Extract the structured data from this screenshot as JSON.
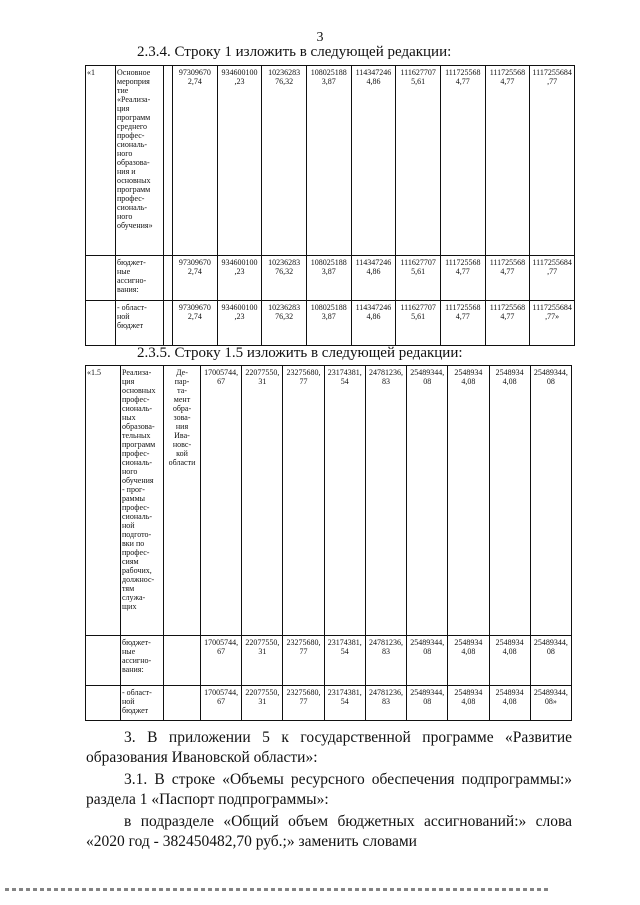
{
  "page_number": "3",
  "section1": {
    "heading": "2.3.4. Строку 1 изложить в следующей редакции:",
    "rows": [
      {
        "num": "«1",
        "name": "Основное\nмероприя\nтие\n«Реализа-\nция\nпрограмм\nсреднего\nпрофес-\nсиональ-\nного\nобразова-\nния и\nосновных\nпрограмм\nпрофес-\nсиональ-\nного\nобучения»",
        "exec": "",
        "values": [
          "97309670\n2,74",
          "934600100\n,23",
          "10236283\n76,32",
          "108025188\n3,87",
          "114347246\n4,86",
          "111627707\n5,61",
          "111725568\n4,77",
          "111725568\n4,77",
          "1117255684\n,77"
        ]
      },
      {
        "num": "",
        "name": "бюджет-\nные\nассигно-\nвания:",
        "exec": "",
        "values": [
          "97309670\n2,74",
          "934600100\n,23",
          "10236283\n76,32",
          "108025188\n3,87",
          "114347246\n4,86",
          "111627707\n5,61",
          "111725568\n4,77",
          "111725568\n4,77",
          "1117255684\n,77"
        ]
      },
      {
        "num": "",
        "name": "- област-\nной\nбюджет",
        "exec": "",
        "values": [
          "97309670\n2,74",
          "934600100\n,23",
          "10236283\n76,32",
          "108025188\n3,87",
          "114347246\n4,86",
          "111627707\n5,61",
          "111725568\n4,77",
          "111725568\n4,77",
          "1117255684\n,77»"
        ]
      }
    ]
  },
  "section2": {
    "heading": "2.3.5. Строку 1.5 изложить в следующей редакции:",
    "rows": [
      {
        "num": "«1.5",
        "name": "Реализа-\nция\nосновных\nпрофес-\nсиональ-\nных\nобразова-\nтельных\nпрограмм\nпрофес-\nсиональ-\nного\nобучения\n- прог-\nраммы\nпрофес-\nсиональ-\nной\nподгото-\nвки по\nпрофес-\nсиям\nрабочих,\nдолжнос-\nтям\nслужа-\nщих",
        "exec": "Де-\nпар-\nта-\nмент\nобра-\nзова-\nния\nИва-\nновс-\nкой\nобласти",
        "values": [
          "17005744,\n67",
          "22077550,\n31",
          "23275680,\n77",
          "23174381,\n54",
          "24781236,\n83",
          "25489344,\n08",
          "2548934\n4,08",
          "2548934\n4,08",
          "25489344,\n08"
        ]
      },
      {
        "num": "",
        "name": "бюджет-\nные\nассигно-\nвания:",
        "exec": "",
        "values": [
          "17005744,\n67",
          "22077550,\n31",
          "23275680,\n77",
          "23174381,\n54",
          "24781236,\n83",
          "25489344,\n08",
          "2548934\n4,08",
          "2548934\n4,08",
          "25489344,\n08"
        ]
      },
      {
        "num": "",
        "name": "- област-\nной\nбюджет",
        "exec": "",
        "values": [
          "17005744,\n67",
          "22077550,\n31",
          "23275680,\n77",
          "23174381,\n54",
          "24781236,\n83",
          "25489344,\n08",
          "2548934\n4,08",
          "2548934\n4,08",
          "25489344,\n08»"
        ]
      }
    ]
  },
  "paragraphs": [
    "3. В приложении 5 к государственной программе «Развитие образования Ивановской области»:",
    "3.1. В строке «Объемы ресурсного обеспечения подпрограммы:» раздела 1 «Паспорт подпрограммы»:",
    "в подразделе «Общий объем бюджетных ассигнований:» слова «2020 год - 382450482,70 руб.;» заменить словами"
  ]
}
